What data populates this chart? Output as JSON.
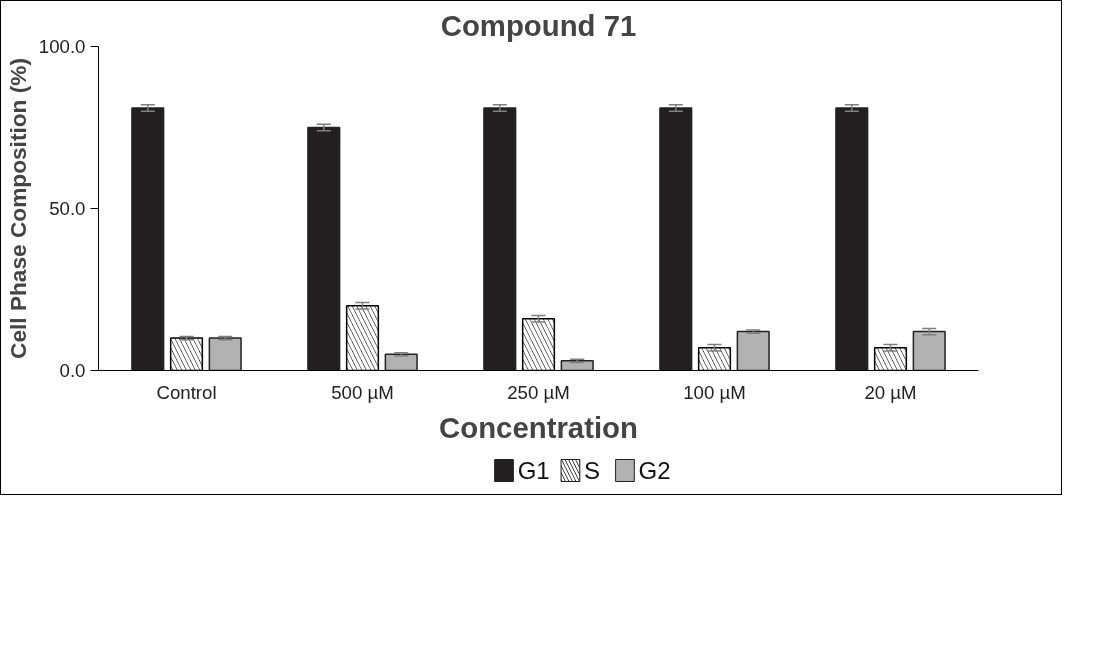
{
  "chart_data": {
    "type": "bar",
    "title": "Compound 71",
    "xlabel": "Concentration",
    "ylabel": "Cell Phase Composition (%)",
    "categories": [
      "Control",
      "500 µM",
      "250 µM",
      "100 µM",
      "20 µM"
    ],
    "series": [
      {
        "name": "G1",
        "color": "#231f20",
        "values": [
          81,
          75,
          81,
          81,
          81
        ],
        "errors": [
          1,
          1,
          1,
          1,
          1
        ]
      },
      {
        "name": "S",
        "color": "#000000",
        "values": [
          10,
          20,
          16,
          7,
          7
        ],
        "errors": [
          0.5,
          1,
          1,
          1,
          1
        ]
      },
      {
        "name": "G2",
        "color": "#b2b2b2",
        "values": [
          10,
          5,
          3,
          12,
          12
        ],
        "errors": [
          0.5,
          0.5,
          0.5,
          0.5,
          1
        ]
      }
    ],
    "ylim": [
      0,
      100
    ],
    "yticks": [
      {
        "value": 0,
        "label": "0.0"
      },
      {
        "value": 50,
        "label": "50.0"
      },
      {
        "value": 100,
        "label": "100.0"
      }
    ],
    "grid": false,
    "legend": "bottom"
  }
}
